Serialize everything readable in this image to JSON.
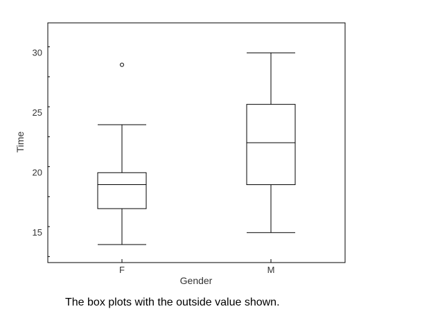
{
  "chart_data": {
    "type": "box",
    "xlabel": "Gender",
    "ylabel": "Time",
    "categories": [
      "F",
      "M"
    ],
    "ylim": [
      12.5,
      32.5
    ],
    "yticks": [
      15,
      20,
      25,
      30
    ],
    "grid": false,
    "boxes": [
      {
        "category": "F",
        "whisker_low": 14,
        "q1": 17,
        "median": 19,
        "q3": 20,
        "whisker_high": 24,
        "outliers": [
          29
        ]
      },
      {
        "category": "M",
        "whisker_low": 15,
        "q1": 19,
        "median": 22.5,
        "q3": 25.7,
        "whisker_high": 30,
        "outliers": []
      }
    ]
  },
  "caption": "The box plots with the outside value shown."
}
